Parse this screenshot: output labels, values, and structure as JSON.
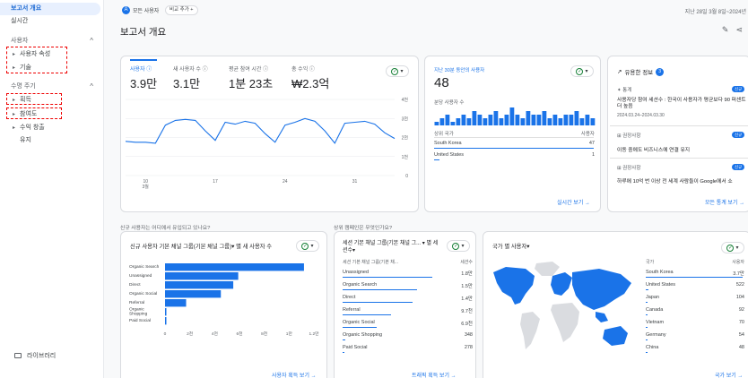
{
  "sidebar": {
    "items": [
      {
        "label": "보고서 개요"
      },
      {
        "label": "실시간"
      },
      {
        "label": "사용자"
      },
      {
        "label": "사용자 속성"
      },
      {
        "label": "기술"
      },
      {
        "label": "수명 주기"
      },
      {
        "label": "획득"
      },
      {
        "label": "참여도"
      },
      {
        "label": "수익 창출"
      },
      {
        "label": "유지"
      }
    ],
    "library": "라이브러리"
  },
  "topbar": {
    "segment_icon": "A",
    "segment": "모든 사용자",
    "compare": "비교 추가 +",
    "date_range": "지난 28일  3월 8일~2024년"
  },
  "page_title": "보고서 개요",
  "overview": {
    "metrics": [
      {
        "label": "사용자 ⓘ",
        "value": "3.9만"
      },
      {
        "label": "새 사용자 수 ⓘ",
        "value": "3.1만"
      },
      {
        "label": "평균 참여 시간 ⓘ",
        "value": "1분 23초"
      },
      {
        "label": "총 수익 ⓘ",
        "value": "₩2.3억"
      }
    ],
    "y_ticks": [
      "4천",
      "3천",
      "2천",
      "1천",
      "0"
    ],
    "x_ticks": [
      "10\n3월",
      "17",
      "24",
      "31"
    ]
  },
  "chart_data": [
    {
      "type": "line",
      "title": "사용자",
      "x": [
        "3월 8일",
        "3월 9일",
        "3월 10일",
        "3월 11일",
        "3월 12일",
        "3월 13일",
        "3월 14일",
        "3월 15일",
        "3월 16일",
        "3월 17일",
        "3월 18일",
        "3월 19일",
        "3월 20일",
        "3월 21일",
        "3월 22일",
        "3월 23일",
        "3월 24일",
        "3월 25일",
        "3월 26일",
        "3월 27일",
        "3월 28일",
        "3월 29일",
        "3월 30일",
        "3월 31일",
        "4월 1일",
        "4월 2일",
        "4월 3일",
        "4월 4일"
      ],
      "series": [
        {
          "values": [
            1800,
            1750,
            1750,
            1700,
            2650,
            2900,
            2950,
            2900,
            2350,
            1850,
            2800,
            2700,
            2850,
            2750,
            2200,
            1750,
            2650,
            2800,
            3000,
            2850,
            2350,
            1700,
            2750,
            2800,
            2850,
            2700,
            2250,
            1950
          ]
        }
      ],
      "ylim": [
        0,
        4000
      ],
      "y_ticks": [
        "4천",
        "3천",
        "2천",
        "1천",
        "0"
      ]
    },
    {
      "type": "bar",
      "title": "지난 30분 동안의 사용자",
      "values": [
        1,
        2,
        3,
        1,
        2,
        3,
        2,
        4,
        3,
        2,
        3,
        4,
        2,
        3,
        5,
        3,
        2,
        4,
        3,
        3,
        4,
        2,
        3,
        2,
        3,
        3,
        4,
        2,
        3,
        2
      ]
    },
    {
      "type": "bar",
      "title": "신규 사용자 기본 채널 그룹(기본 채널 그룹)별 새 사용자 수",
      "categories": [
        "Organic Search",
        "Unassigned",
        "Direct",
        "Organic Social",
        "Referral",
        "Organic Shopping",
        "Paid Social"
      ],
      "values": [
        11200,
        5900,
        5500,
        4500,
        1700,
        100,
        50
      ],
      "x_ticks": [
        "0",
        "2천",
        "4천",
        "6천",
        "8천",
        "1만",
        "1.2만"
      ],
      "xlim": [
        0,
        12000
      ]
    }
  ],
  "realtime": {
    "title": "지난 30분 동안의 사용자",
    "value": "48",
    "per_minute": "분당 사용자 수",
    "table_header": [
      "상위 국가",
      "사용자"
    ],
    "rows": [
      {
        "country": "South Korea",
        "users": "47"
      },
      {
        "country": "United States",
        "users": "1"
      }
    ],
    "link": "실시간 보기 →"
  },
  "insights": {
    "title": "유용한 정보",
    "count": "3",
    "items": [
      {
        "kind": "통계",
        "badge": "신규",
        "text": "사용자당 참여 세션수 : 한국이 사용자가 평균보다 90 퍼센트 더 높음",
        "date": "2024.03.24–2024.03.30"
      },
      {
        "kind": "권장사항",
        "badge": "신규",
        "text": "이동 중에도 비즈니스에 연결 유지"
      },
      {
        "kind": "권장사항",
        "badge": "신규",
        "text": "하루에 10억 번 이상 전 세계 사람들이 Google에서 쇼"
      }
    ],
    "link": "모든 통계 보기 →"
  },
  "questions": {
    "q1": "신규 사용자는 어디에서 유입되고 있나요?",
    "q2": "상위 캠페인은 무엇인가요?"
  },
  "acquisition": {
    "title": "신규 사용자 기본 채널 그룹(기본 채널 그룹)▾ 별 새 사용자 수",
    "categories": [
      "Organic Search",
      "Unassigned",
      "Direct",
      "Organic Social",
      "Referral",
      "Organic\nShopping",
      "Paid Social"
    ],
    "x_ticks": [
      "0",
      "2천",
      "4천",
      "6천",
      "8천",
      "1만",
      "1.2만"
    ],
    "link": "사용자 획득 보기 →"
  },
  "traffic": {
    "title": "세션 기본 채널 그룹(기본 채널 그... ▾ 별 세션수▾",
    "col_label": "세션 기본 채널 그룹(기본 채...",
    "col_value": "세션수",
    "rows": [
      {
        "label": "Unassigned",
        "value": "1.8만"
      },
      {
        "label": "Organic Search",
        "value": "1.5만"
      },
      {
        "label": "Direct",
        "value": "1.4만"
      },
      {
        "label": "Referral",
        "value": "9.7천"
      },
      {
        "label": "Organic Social",
        "value": "6.9천"
      },
      {
        "label": "Organic Shopping",
        "value": "348"
      },
      {
        "label": "Paid Social",
        "value": "278"
      }
    ],
    "link": "트래픽 획득 보기 →"
  },
  "geo": {
    "title": "국가 별 사용자▾",
    "col_country": "국가",
    "col_users": "사용자",
    "rows": [
      {
        "country": "South Korea",
        "users": "3.7만"
      },
      {
        "country": "United States",
        "users": "522"
      },
      {
        "country": "Japan",
        "users": "104"
      },
      {
        "country": "Canada",
        "users": "92"
      },
      {
        "country": "Vietnam",
        "users": "70"
      },
      {
        "country": "Germany",
        "users": "54"
      },
      {
        "country": "China",
        "users": "48"
      }
    ],
    "link": "국가 보기 →"
  },
  "colors": {
    "accent": "#1a73e8",
    "annotation": "#e00000",
    "positive": "#188038"
  }
}
